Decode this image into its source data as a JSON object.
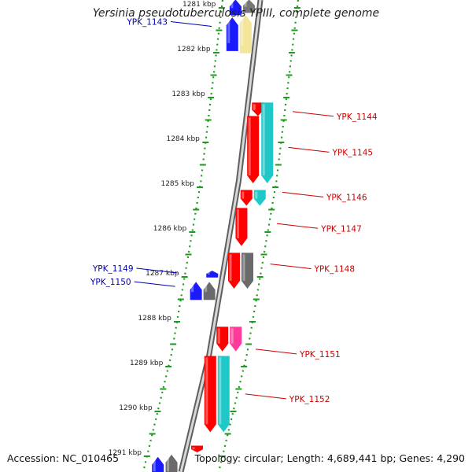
{
  "title": "Yersinia pseudotuberculosis YPIII, complete genome",
  "accession_text": "Accession: NC_010465",
  "topology_text": "Topology: circular; Length: 4,689,441 bp; Genes: 4,290",
  "ruler": [
    {
      "label": "1281 kbp",
      "pos": 1281
    },
    {
      "label": "1282 kbp",
      "pos": 1282
    },
    {
      "label": "1283 kbp",
      "pos": 1283
    },
    {
      "label": "1284 kbp",
      "pos": 1284
    },
    {
      "label": "1285 kbp",
      "pos": 1285
    },
    {
      "label": "1286 kbp",
      "pos": 1286
    },
    {
      "label": "1287 kbp",
      "pos": 1287
    },
    {
      "label": "1288 kbp",
      "pos": 1288
    },
    {
      "label": "1289 kbp",
      "pos": 1289
    },
    {
      "label": "1290 kbp",
      "pos": 1290
    },
    {
      "label": "1291 kbp",
      "pos": 1291
    }
  ],
  "gene_labels": [
    {
      "name": "YPK_1143",
      "strand": "minus",
      "pos": 1281.5
    },
    {
      "name": "YPK_1144",
      "strand": "plus",
      "pos": 1283.4
    },
    {
      "name": "YPK_1145",
      "strand": "plus",
      "pos": 1284.2
    },
    {
      "name": "YPK_1146",
      "strand": "plus",
      "pos": 1285.2
    },
    {
      "name": "YPK_1147",
      "strand": "plus",
      "pos": 1285.9
    },
    {
      "name": "YPK_1148",
      "strand": "plus",
      "pos": 1286.8
    },
    {
      "name": "YPK_1149",
      "strand": "minus",
      "pos": 1287.0
    },
    {
      "name": "YPK_1150",
      "strand": "minus",
      "pos": 1287.3
    },
    {
      "name": "YPK_1151",
      "strand": "plus",
      "pos": 1288.7
    },
    {
      "name": "YPK_1152",
      "strand": "plus",
      "pos": 1289.7
    }
  ],
  "features": [
    {
      "strand": "minus",
      "kind": "gene",
      "start": 1281.25,
      "end": 1282.1,
      "color": "#f3e59a"
    },
    {
      "strand": "minus",
      "kind": "cds",
      "start": 1281.3,
      "end": 1282.05,
      "color": "#1a1aff"
    },
    {
      "strand": "minus",
      "kind": "cds",
      "start": 1280.9,
      "end": 1281.25,
      "color": "#1a1aff"
    },
    {
      "strand": "minus",
      "kind": "gene",
      "start": 1280.9,
      "end": 1281.2,
      "color": "#777777"
    },
    {
      "strand": "plus",
      "kind": "gene",
      "start": 1283.2,
      "end": 1283.5,
      "color": "#ff0000"
    },
    {
      "strand": "plus",
      "kind": "gene",
      "start": 1283.5,
      "end": 1285.0,
      "color": "#ff0000"
    },
    {
      "strand": "plus",
      "kind": "cds",
      "start": 1283.2,
      "end": 1285.0,
      "color": "#1fc8c8"
    },
    {
      "strand": "plus",
      "kind": "gene",
      "start": 1285.15,
      "end": 1285.5,
      "color": "#ff0000"
    },
    {
      "strand": "plus",
      "kind": "cds",
      "start": 1285.15,
      "end": 1285.5,
      "color": "#1fc8c8"
    },
    {
      "strand": "plus",
      "kind": "gene",
      "start": 1285.55,
      "end": 1286.4,
      "color": "#ff0000"
    },
    {
      "strand": "plus",
      "kind": "gene",
      "start": 1286.55,
      "end": 1287.35,
      "color": "#ff0000"
    },
    {
      "strand": "plus",
      "kind": "cds",
      "start": 1286.55,
      "end": 1287.35,
      "color": "#6a6a6a"
    },
    {
      "strand": "minus",
      "kind": "gene",
      "start": 1286.95,
      "end": 1287.1,
      "color": "#1a1aff"
    },
    {
      "strand": "minus",
      "kind": "gene",
      "start": 1287.2,
      "end": 1287.6,
      "color": "#6a6a6a"
    },
    {
      "strand": "minus",
      "kind": "cds",
      "start": 1287.2,
      "end": 1287.6,
      "color": "#1a1aff"
    },
    {
      "strand": "plus",
      "kind": "gene",
      "start": 1288.2,
      "end": 1288.75,
      "color": "#ff0000"
    },
    {
      "strand": "plus",
      "kind": "cds",
      "start": 1288.2,
      "end": 1288.75,
      "color": "#ff3a9a"
    },
    {
      "strand": "plus",
      "kind": "gene",
      "start": 1288.85,
      "end": 1290.55,
      "color": "#ff0000"
    },
    {
      "strand": "plus",
      "kind": "cds",
      "start": 1288.85,
      "end": 1290.55,
      "color": "#1fc8c8"
    },
    {
      "strand": "plus",
      "kind": "gene",
      "start": 1290.85,
      "end": 1291.0,
      "color": "#ff0000"
    },
    {
      "strand": "minus",
      "kind": "gene",
      "start": 1291.05,
      "end": 1291.6,
      "color": "#6a6a6a"
    },
    {
      "strand": "minus",
      "kind": "cds",
      "start": 1291.1,
      "end": 1291.6,
      "color": "#1a1aff"
    }
  ],
  "colors": {
    "backbone": "#9a9a9a",
    "dotted_track": "#1f9a1f",
    "plus_label": "#cc0000",
    "minus_label": "#0000b0"
  }
}
